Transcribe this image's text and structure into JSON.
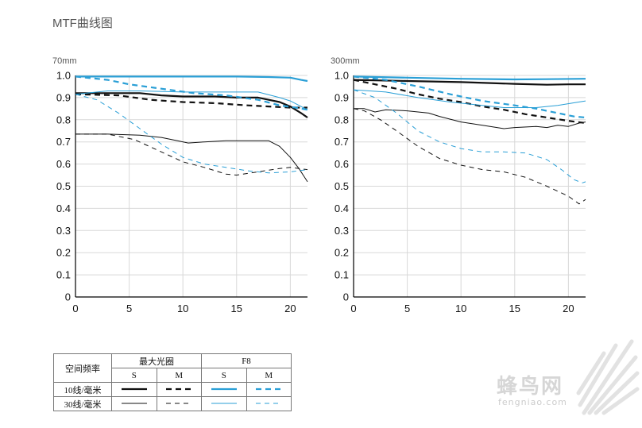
{
  "page_title": "MTF曲线图",
  "colors": {
    "black": "#111111",
    "blue": "#2a9fd6",
    "grid": "#d8d8d8",
    "axis": "#000000"
  },
  "legend": {
    "row_header": "空间频率",
    "group_wide": "最大光圈",
    "group_f8": "F8",
    "s": "S",
    "m": "M",
    "row10": "10线/毫米",
    "row30": "30线/毫米"
  },
  "watermark": {
    "logo_text": "蜂鸟网",
    "url_text": "fengniao.com"
  },
  "chart_data": [
    {
      "type": "line",
      "title": "70mm",
      "xlim": [
        0,
        21.6
      ],
      "ylim": [
        0,
        1.0
      ],
      "x_ticks": [
        "0",
        "5",
        "10",
        "15",
        "20"
      ],
      "y_ticks": [
        "0",
        "0.1",
        "0.2",
        "0.3",
        "0.4",
        "0.5",
        "0.6",
        "0.7",
        "0.8",
        "0.9",
        "1.0"
      ],
      "grid": true,
      "series": [
        {
          "freq": "10",
          "aperture": "wide",
          "orient": "S",
          "points": [
            [
              0,
              0.92
            ],
            [
              3,
              0.92
            ],
            [
              6,
              0.92
            ],
            [
              8,
              0.91
            ],
            [
              10,
              0.905
            ],
            [
              13,
              0.905
            ],
            [
              15,
              0.9
            ],
            [
              17,
              0.9
            ],
            [
              19,
              0.88
            ],
            [
              20,
              0.86
            ],
            [
              21,
              0.83
            ],
            [
              21.6,
              0.81
            ]
          ]
        },
        {
          "freq": "10",
          "aperture": "wide",
          "orient": "M",
          "points": [
            [
              0,
              0.915
            ],
            [
              4,
              0.91
            ],
            [
              7,
              0.89
            ],
            [
              10,
              0.88
            ],
            [
              13,
              0.875
            ],
            [
              16,
              0.865
            ],
            [
              18,
              0.86
            ],
            [
              20,
              0.855
            ],
            [
              21.6,
              0.855
            ]
          ]
        },
        {
          "freq": "10",
          "aperture": "f8",
          "orient": "S",
          "points": [
            [
              0,
              0.995
            ],
            [
              5,
              0.995
            ],
            [
              10,
              0.995
            ],
            [
              15,
              0.995
            ],
            [
              18,
              0.993
            ],
            [
              20,
              0.99
            ],
            [
              21,
              0.98
            ],
            [
              21.6,
              0.975
            ]
          ]
        },
        {
          "freq": "10",
          "aperture": "f8",
          "orient": "M",
          "points": [
            [
              0,
              0.995
            ],
            [
              3,
              0.98
            ],
            [
              5,
              0.96
            ],
            [
              8,
              0.94
            ],
            [
              11,
              0.92
            ],
            [
              14,
              0.91
            ],
            [
              17,
              0.89
            ],
            [
              19,
              0.865
            ],
            [
              20.5,
              0.855
            ],
            [
              21.6,
              0.845
            ]
          ]
        },
        {
          "freq": "30",
          "aperture": "wide",
          "orient": "S",
          "points": [
            [
              0,
              0.735
            ],
            [
              3,
              0.735
            ],
            [
              6,
              0.73
            ],
            [
              8,
              0.72
            ],
            [
              9.5,
              0.705
            ],
            [
              10.5,
              0.695
            ],
            [
              12,
              0.7
            ],
            [
              14,
              0.705
            ],
            [
              15,
              0.705
            ],
            [
              17,
              0.705
            ],
            [
              18,
              0.705
            ],
            [
              19,
              0.68
            ],
            [
              20,
              0.63
            ],
            [
              20.8,
              0.58
            ],
            [
              21.6,
              0.52
            ]
          ]
        },
        {
          "freq": "30",
          "aperture": "wide",
          "orient": "M",
          "points": [
            [
              0,
              0.735
            ],
            [
              3,
              0.735
            ],
            [
              5.5,
              0.71
            ],
            [
              8,
              0.655
            ],
            [
              10,
              0.61
            ],
            [
              12,
              0.585
            ],
            [
              14,
              0.555
            ],
            [
              15,
              0.55
            ],
            [
              17,
              0.565
            ],
            [
              19,
              0.58
            ],
            [
              20,
              0.585
            ],
            [
              21.6,
              0.575
            ]
          ]
        },
        {
          "freq": "30",
          "aperture": "f8",
          "orient": "S",
          "points": [
            [
              0,
              0.915
            ],
            [
              3,
              0.93
            ],
            [
              6,
              0.93
            ],
            [
              10,
              0.925
            ],
            [
              14,
              0.925
            ],
            [
              17,
              0.925
            ],
            [
              19,
              0.9
            ],
            [
              20,
              0.885
            ],
            [
              21,
              0.86
            ],
            [
              21.6,
              0.845
            ]
          ]
        },
        {
          "freq": "30",
          "aperture": "f8",
          "orient": "M",
          "points": [
            [
              0,
              0.915
            ],
            [
              2,
              0.89
            ],
            [
              4,
              0.83
            ],
            [
              6,
              0.76
            ],
            [
              8,
              0.69
            ],
            [
              10,
              0.63
            ],
            [
              12,
              0.6
            ],
            [
              14,
              0.585
            ],
            [
              16,
              0.57
            ],
            [
              18,
              0.56
            ],
            [
              20,
              0.565
            ],
            [
              21.6,
              0.575
            ]
          ]
        }
      ]
    },
    {
      "type": "line",
      "title": "300mm",
      "xlim": [
        0,
        21.6
      ],
      "ylim": [
        0,
        1.0
      ],
      "x_ticks": [
        "0",
        "5",
        "10",
        "15",
        "20"
      ],
      "y_ticks": [
        "0",
        "0.1",
        "0.2",
        "0.3",
        "0.4",
        "0.5",
        "0.6",
        "0.7",
        "0.8",
        "0.9",
        "1.0"
      ],
      "grid": true,
      "series": [
        {
          "freq": "10",
          "aperture": "wide",
          "orient": "S",
          "points": [
            [
              0,
              0.98
            ],
            [
              5,
              0.975
            ],
            [
              10,
              0.97
            ],
            [
              15,
              0.962
            ],
            [
              18,
              0.958
            ],
            [
              20,
              0.96
            ],
            [
              21.6,
              0.96
            ]
          ]
        },
        {
          "freq": "10",
          "aperture": "wide",
          "orient": "M",
          "points": [
            [
              0,
              0.98
            ],
            [
              2,
              0.96
            ],
            [
              4,
              0.94
            ],
            [
              6,
              0.915
            ],
            [
              8,
              0.895
            ],
            [
              10,
              0.88
            ],
            [
              12,
              0.86
            ],
            [
              14,
              0.845
            ],
            [
              16,
              0.825
            ],
            [
              18,
              0.81
            ],
            [
              20,
              0.795
            ],
            [
              21.6,
              0.785
            ]
          ]
        },
        {
          "freq": "10",
          "aperture": "f8",
          "orient": "S",
          "points": [
            [
              0,
              0.995
            ],
            [
              5,
              0.99
            ],
            [
              10,
              0.985
            ],
            [
              15,
              0.982
            ],
            [
              18,
              0.983
            ],
            [
              21.6,
              0.985
            ]
          ]
        },
        {
          "freq": "10",
          "aperture": "f8",
          "orient": "M",
          "points": [
            [
              0,
              0.995
            ],
            [
              3,
              0.98
            ],
            [
              6,
              0.95
            ],
            [
              9,
              0.915
            ],
            [
              12,
              0.885
            ],
            [
              15,
              0.865
            ],
            [
              17,
              0.85
            ],
            [
              19,
              0.83
            ],
            [
              20.5,
              0.815
            ],
            [
              21.6,
              0.81
            ]
          ]
        },
        {
          "freq": "30",
          "aperture": "wide",
          "orient": "S",
          "points": [
            [
              0,
              0.85
            ],
            [
              1,
              0.85
            ],
            [
              2,
              0.835
            ],
            [
              3,
              0.845
            ],
            [
              5,
              0.84
            ],
            [
              7,
              0.83
            ],
            [
              8,
              0.815
            ],
            [
              10,
              0.79
            ],
            [
              12,
              0.775
            ],
            [
              14,
              0.76
            ],
            [
              15,
              0.765
            ],
            [
              17,
              0.77
            ],
            [
              18,
              0.765
            ],
            [
              19,
              0.775
            ],
            [
              20,
              0.77
            ],
            [
              21,
              0.785
            ],
            [
              21.6,
              0.79
            ]
          ]
        },
        {
          "freq": "30",
          "aperture": "wide",
          "orient": "M",
          "points": [
            [
              0,
              0.85
            ],
            [
              1,
              0.84
            ],
            [
              2.5,
              0.8
            ],
            [
              4,
              0.75
            ],
            [
              6,
              0.68
            ],
            [
              8,
              0.625
            ],
            [
              10,
              0.595
            ],
            [
              12,
              0.575
            ],
            [
              14,
              0.565
            ],
            [
              16,
              0.54
            ],
            [
              18,
              0.5
            ],
            [
              20,
              0.455
            ],
            [
              21,
              0.42
            ],
            [
              21.6,
              0.44
            ]
          ]
        },
        {
          "freq": "30",
          "aperture": "f8",
          "orient": "S",
          "points": [
            [
              0,
              0.935
            ],
            [
              3,
              0.925
            ],
            [
              6,
              0.9
            ],
            [
              9,
              0.88
            ],
            [
              12,
              0.865
            ],
            [
              14,
              0.855
            ],
            [
              15,
              0.855
            ],
            [
              17,
              0.855
            ],
            [
              19,
              0.865
            ],
            [
              21.6,
              0.885
            ]
          ]
        },
        {
          "freq": "30",
          "aperture": "f8",
          "orient": "M",
          "points": [
            [
              0,
              0.935
            ],
            [
              2,
              0.9
            ],
            [
              4,
              0.83
            ],
            [
              6,
              0.75
            ],
            [
              8,
              0.7
            ],
            [
              10,
              0.67
            ],
            [
              12,
              0.655
            ],
            [
              14,
              0.655
            ],
            [
              16,
              0.65
            ],
            [
              18,
              0.62
            ],
            [
              19.5,
              0.57
            ],
            [
              20.5,
              0.53
            ],
            [
              21.3,
              0.515
            ],
            [
              21.6,
              0.52
            ]
          ]
        }
      ]
    }
  ]
}
